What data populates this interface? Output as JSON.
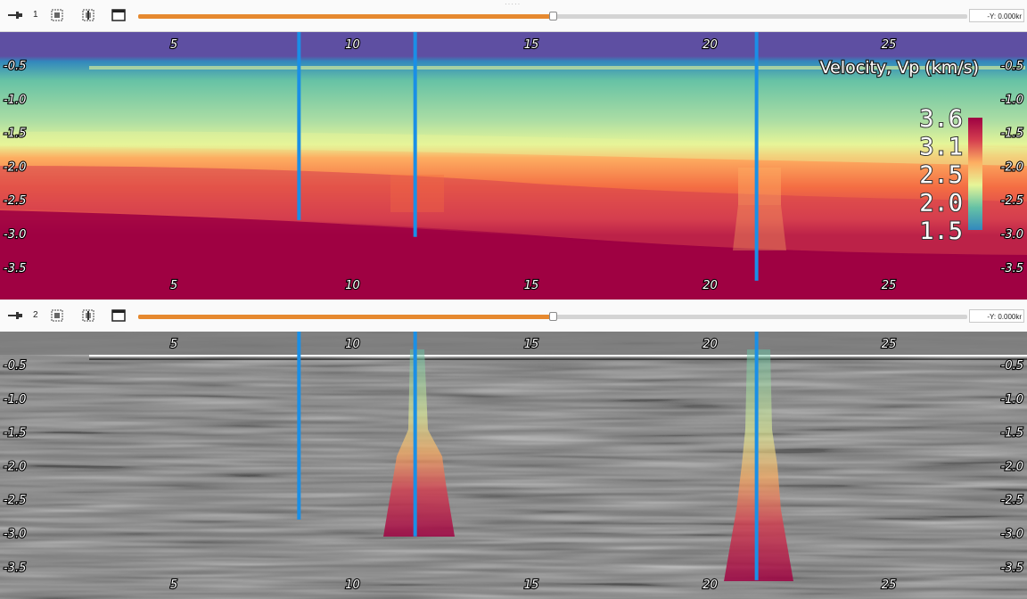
{
  "toolbar_top": {
    "view_index": "1",
    "slider_fraction": 0.5,
    "coord_readout": "-Y: 0.000kr",
    "icons": [
      "pin-icon",
      "grid-select-icon",
      "grid-add-icon",
      "window-icon"
    ]
  },
  "toolbar_bottom": {
    "view_index": "2",
    "slider_fraction": 0.5,
    "coord_readout": "-Y: 0.000kr",
    "icons": [
      "grid-select-icon",
      "grid-add-icon",
      "window-icon"
    ]
  },
  "velocity_panel": {
    "colorbar_title": "Velocity, Vp (km/s)",
    "colorbar_ticks": [
      "3.6",
      "3.1",
      "2.5",
      "2.0",
      "1.5"
    ],
    "colorbar_range": [
      1.5,
      3.6
    ],
    "colormap_colors": [
      "#2f7fbf",
      "#66c2a5",
      "#e6f598",
      "#fdae61",
      "#d53e4f",
      "#9e0142"
    ]
  },
  "axes": {
    "x_ticks": [
      "5",
      "10",
      "15",
      "20",
      "25"
    ],
    "x_values": [
      5,
      10,
      15,
      20,
      25
    ],
    "y_ticks": [
      "-0.5",
      "-1.0",
      "-1.5",
      "-2.0",
      "-2.5",
      "-3.0",
      "-3.5"
    ],
    "y_values": [
      -0.5,
      -1.0,
      -1.5,
      -2.0,
      -2.5,
      -3.0,
      -3.5
    ],
    "right_y_ticks_top": [
      "-0.5",
      "-1.0",
      "-1.5",
      "-2.0",
      "-2.5",
      "-3.0",
      "-3.5"
    ],
    "right_y_ticks_bottom": [
      "-0.5",
      "-1.0",
      "-1.5",
      "-2.0",
      "-2.5",
      "-3.0",
      "-3.5"
    ]
  },
  "wells": [
    {
      "x": 8.5,
      "bottom_depth": -2.8
    },
    {
      "x": 11.75,
      "bottom_depth": -3.05
    },
    {
      "x": 21.3,
      "bottom_depth": -3.7
    }
  ],
  "colors": {
    "well_line": "#1a8fe6",
    "slider_accent": "#e6892f",
    "water": "#5e4fa2"
  }
}
